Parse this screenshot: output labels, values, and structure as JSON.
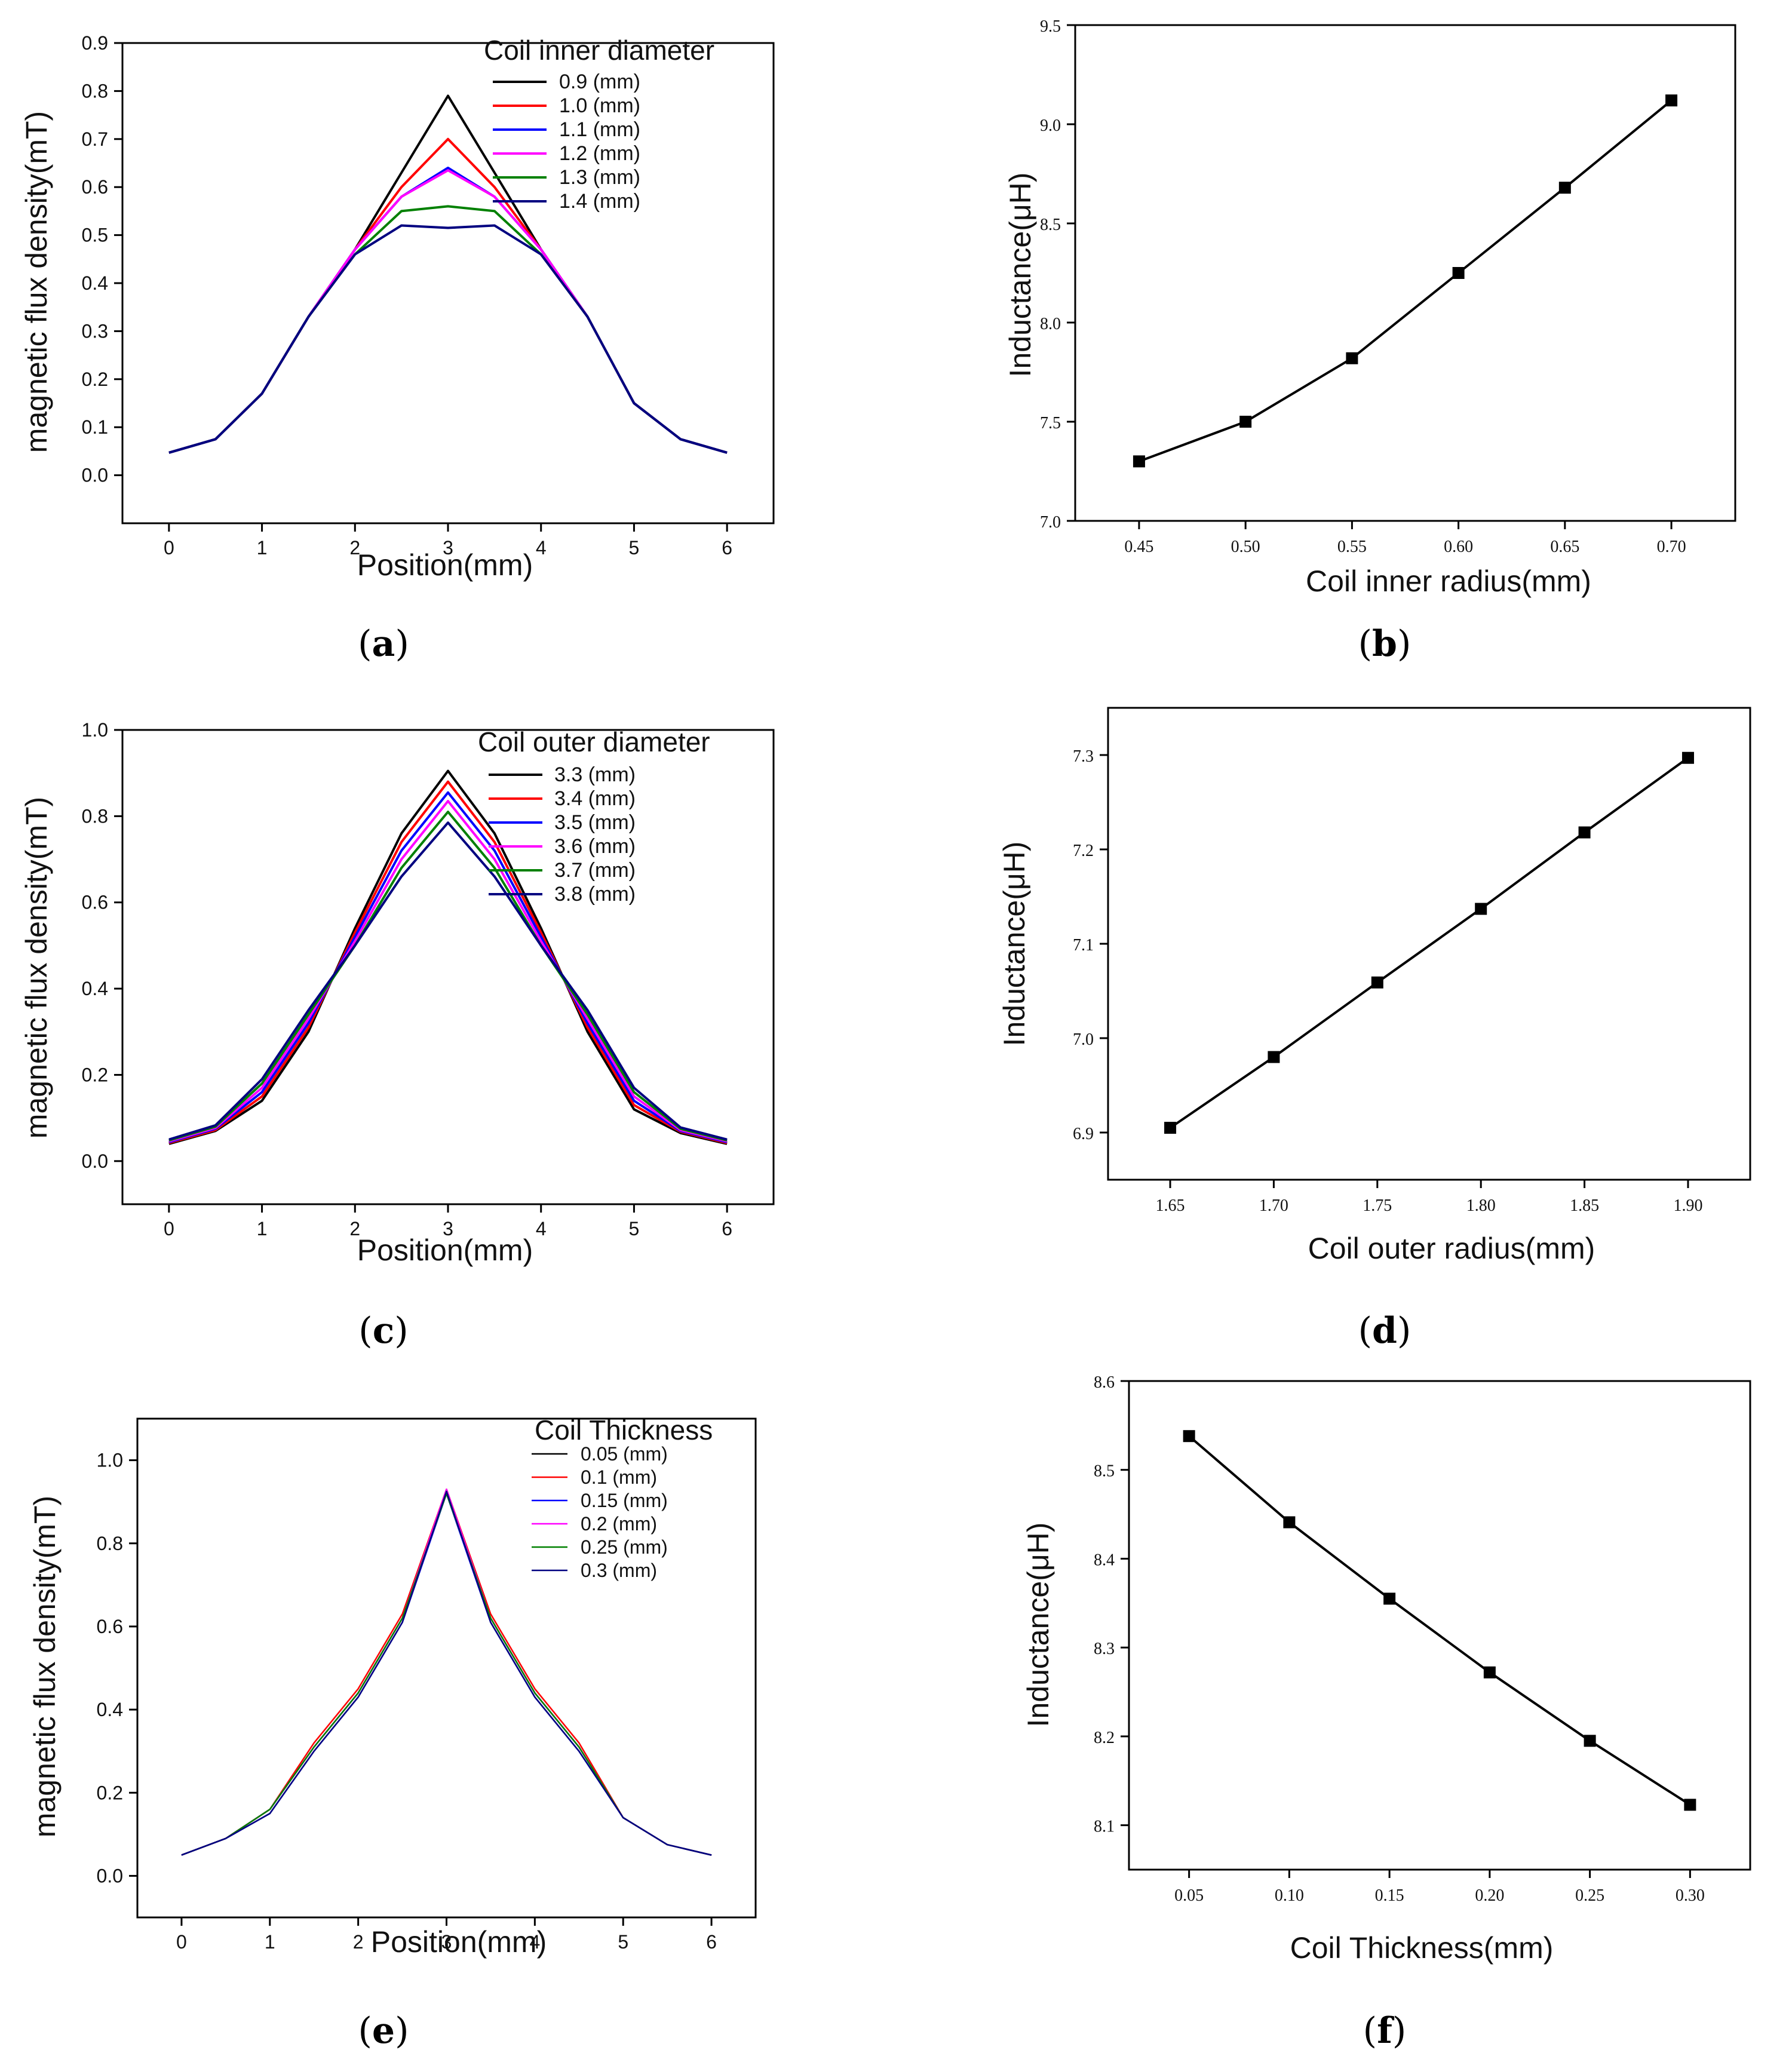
{
  "chart_data": [
    {
      "id": "a",
      "type": "line",
      "caption": "a",
      "xlabel": "Position(mm)",
      "ylabel": "magnetic flux density(mT)",
      "xlim": [
        -0.5,
        6.5
      ],
      "ylim": [
        -0.1,
        0.9
      ],
      "xticks": [
        "0",
        "1",
        "2",
        "3",
        "4",
        "5",
        "6"
      ],
      "yticks": [
        "0.0",
        "0.1",
        "0.2",
        "0.3",
        "0.4",
        "0.5",
        "0.6",
        "0.7",
        "0.8",
        "0.9"
      ],
      "legend": {
        "title": "Coil inner diameter",
        "position": "top-right"
      },
      "series": [
        {
          "name": "0.9 (mm)",
          "color": "#000000",
          "x": [
            0,
            0.5,
            1,
            1.5,
            2,
            2.5,
            3,
            3.5,
            4,
            4.5,
            5,
            5.5,
            6
          ],
          "y": [
            0.047,
            0.075,
            0.17,
            0.33,
            0.47,
            0.63,
            0.79,
            0.63,
            0.47,
            0.33,
            0.15,
            0.075,
            0.047
          ]
        },
        {
          "name": "1.0 (mm)",
          "color": "#ff0000",
          "x": [
            0,
            0.5,
            1,
            1.5,
            2,
            2.5,
            3,
            3.5,
            4,
            4.5,
            5,
            5.5,
            6
          ],
          "y": [
            0.047,
            0.075,
            0.17,
            0.33,
            0.47,
            0.6,
            0.7,
            0.6,
            0.47,
            0.33,
            0.15,
            0.075,
            0.047
          ]
        },
        {
          "name": "1.1 (mm)",
          "color": "#0000ff",
          "x": [
            0,
            0.5,
            1,
            1.5,
            2,
            2.5,
            3,
            3.5,
            4,
            4.5,
            5,
            5.5,
            6
          ],
          "y": [
            0.047,
            0.075,
            0.17,
            0.33,
            0.47,
            0.58,
            0.64,
            0.58,
            0.47,
            0.33,
            0.15,
            0.075,
            0.047
          ]
        },
        {
          "name": "1.2 (mm)",
          "color": "#ff00ff",
          "x": [
            0,
            0.5,
            1,
            1.5,
            2,
            2.5,
            3,
            3.5,
            4,
            4.5,
            5,
            5.5,
            6
          ],
          "y": [
            0.047,
            0.075,
            0.17,
            0.33,
            0.47,
            0.58,
            0.635,
            0.58,
            0.47,
            0.33,
            0.15,
            0.075,
            0.047
          ]
        },
        {
          "name": "1.3 (mm)",
          "color": "#008000",
          "x": [
            0,
            0.5,
            1,
            1.5,
            2,
            2.5,
            3,
            3.5,
            4,
            4.5,
            5,
            5.5,
            6
          ],
          "y": [
            0.047,
            0.075,
            0.17,
            0.33,
            0.46,
            0.55,
            0.56,
            0.55,
            0.46,
            0.33,
            0.15,
            0.075,
            0.047
          ]
        },
        {
          "name": "1.4 (mm)",
          "color": "#000080",
          "x": [
            0,
            0.5,
            1,
            1.5,
            2,
            2.5,
            3,
            3.5,
            4,
            4.5,
            5,
            5.5,
            6
          ],
          "y": [
            0.047,
            0.075,
            0.17,
            0.33,
            0.46,
            0.52,
            0.515,
            0.52,
            0.46,
            0.33,
            0.15,
            0.075,
            0.047
          ]
        }
      ]
    },
    {
      "id": "b",
      "type": "line",
      "caption": "b",
      "xlabel": "Coil inner radius(mm)",
      "ylabel": "Inductance(μH)",
      "xlim": [
        0.42,
        0.73
      ],
      "ylim": [
        7.0,
        9.5
      ],
      "xticks": [
        "0.45",
        "0.50",
        "0.55",
        "0.60",
        "0.65",
        "0.70"
      ],
      "yticks": [
        "7.0",
        "7.5",
        "8.0",
        "8.5",
        "9.0",
        "9.5"
      ],
      "series": [
        {
          "name": "Inductance",
          "color": "#000000",
          "x": [
            0.45,
            0.5,
            0.55,
            0.6,
            0.65,
            0.7
          ],
          "y": [
            7.3,
            7.5,
            7.82,
            8.25,
            8.68,
            9.12
          ]
        }
      ]
    },
    {
      "id": "c",
      "type": "line",
      "caption": "c",
      "xlabel": "Position(mm)",
      "ylabel": "magnetic flux density(mT)",
      "xlim": [
        -0.5,
        6.5
      ],
      "ylim": [
        -0.1,
        1.0
      ],
      "xticks": [
        "0",
        "1",
        "2",
        "3",
        "4",
        "5",
        "6"
      ],
      "yticks": [
        "0.0",
        "0.2",
        "0.4",
        "0.6",
        "0.8",
        "1.0"
      ],
      "legend": {
        "title": "Coil outer diameter",
        "position": "top-right"
      },
      "series": [
        {
          "name": "3.3 (mm)",
          "color": "#000000",
          "x": [
            0,
            0.5,
            1,
            1.5,
            2,
            2.5,
            3,
            3.5,
            4,
            4.5,
            5,
            5.5,
            6
          ],
          "y": [
            0.04,
            0.07,
            0.14,
            0.3,
            0.54,
            0.76,
            0.905,
            0.76,
            0.54,
            0.3,
            0.12,
            0.065,
            0.04
          ]
        },
        {
          "name": "3.4 (mm)",
          "color": "#ff0000",
          "x": [
            0,
            0.5,
            1,
            1.5,
            2,
            2.5,
            3,
            3.5,
            4,
            4.5,
            5,
            5.5,
            6
          ],
          "y": [
            0.042,
            0.072,
            0.15,
            0.31,
            0.53,
            0.74,
            0.88,
            0.74,
            0.53,
            0.31,
            0.13,
            0.068,
            0.042
          ]
        },
        {
          "name": "3.5 (mm)",
          "color": "#0000ff",
          "x": [
            0,
            0.5,
            1,
            1.5,
            2,
            2.5,
            3,
            3.5,
            4,
            4.5,
            5,
            5.5,
            6
          ],
          "y": [
            0.044,
            0.075,
            0.16,
            0.32,
            0.52,
            0.72,
            0.855,
            0.72,
            0.52,
            0.32,
            0.14,
            0.07,
            0.044
          ]
        },
        {
          "name": "3.6 (mm)",
          "color": "#ff00ff",
          "x": [
            0,
            0.5,
            1,
            1.5,
            2,
            2.5,
            3,
            3.5,
            4,
            4.5,
            5,
            5.5,
            6
          ],
          "y": [
            0.046,
            0.077,
            0.17,
            0.33,
            0.51,
            0.7,
            0.835,
            0.7,
            0.51,
            0.33,
            0.15,
            0.072,
            0.046
          ]
        },
        {
          "name": "3.7 (mm)",
          "color": "#008000",
          "x": [
            0,
            0.5,
            1,
            1.5,
            2,
            2.5,
            3,
            3.5,
            4,
            4.5,
            5,
            5.5,
            6
          ],
          "y": [
            0.048,
            0.08,
            0.18,
            0.34,
            0.5,
            0.68,
            0.81,
            0.68,
            0.5,
            0.34,
            0.16,
            0.075,
            0.048
          ]
        },
        {
          "name": "3.8 (mm)",
          "color": "#000080",
          "x": [
            0,
            0.5,
            1,
            1.5,
            2,
            2.5,
            3,
            3.5,
            4,
            4.5,
            5,
            5.5,
            6
          ],
          "y": [
            0.05,
            0.083,
            0.19,
            0.35,
            0.5,
            0.66,
            0.785,
            0.66,
            0.5,
            0.35,
            0.17,
            0.078,
            0.05
          ]
        }
      ]
    },
    {
      "id": "d",
      "type": "line",
      "caption": "d",
      "xlabel": "Coil outer radius(mm)",
      "ylabel": "Inductance(μH)",
      "xlim": [
        1.62,
        1.93
      ],
      "ylim": [
        6.85,
        7.35
      ],
      "xticks": [
        "1.65",
        "1.70",
        "1.75",
        "1.80",
        "1.85",
        "1.90"
      ],
      "yticks": [
        "6.9",
        "7.0",
        "7.1",
        "7.2",
        "7.3"
      ],
      "series": [
        {
          "name": "Inductance",
          "color": "#000000",
          "x": [
            1.65,
            1.7,
            1.75,
            1.8,
            1.85,
            1.9
          ],
          "y": [
            6.905,
            6.98,
            7.059,
            7.137,
            7.218,
            7.297
          ]
        }
      ]
    },
    {
      "id": "e",
      "type": "line",
      "caption": "e",
      "xlabel": "Position(mm)",
      "ylabel": "magnetic flux density(mT)",
      "xlim": [
        -0.5,
        6.5
      ],
      "ylim": [
        -0.1,
        1.1
      ],
      "xticks": [
        "0",
        "1",
        "2",
        "3",
        "4",
        "5",
        "6"
      ],
      "yticks": [
        "0.0",
        "0.2",
        "0.4",
        "0.6",
        "0.8",
        "1.0"
      ],
      "legend": {
        "title": "Coil Thickness",
        "position": "top-right"
      },
      "series": [
        {
          "name": "0.05 (mm)",
          "color": "#000000",
          "x": [
            0,
            0.5,
            1,
            1.5,
            2,
            2.5,
            3,
            3.5,
            4,
            4.5,
            5,
            5.5,
            6
          ],
          "y": [
            0.05,
            0.09,
            0.16,
            0.31,
            0.44,
            0.62,
            0.93,
            0.62,
            0.44,
            0.31,
            0.14,
            0.075,
            0.05
          ]
        },
        {
          "name": "0.1 (mm)",
          "color": "#ff0000",
          "x": [
            0,
            0.5,
            1,
            1.5,
            2,
            2.5,
            3,
            3.5,
            4,
            4.5,
            5,
            5.5,
            6
          ],
          "y": [
            0.05,
            0.09,
            0.16,
            0.32,
            0.45,
            0.63,
            0.93,
            0.63,
            0.45,
            0.32,
            0.14,
            0.075,
            0.05
          ]
        },
        {
          "name": "0.15 (mm)",
          "color": "#0000ff",
          "x": [
            0,
            0.5,
            1,
            1.5,
            2,
            2.5,
            3,
            3.5,
            4,
            4.5,
            5,
            5.5,
            6
          ],
          "y": [
            0.05,
            0.09,
            0.15,
            0.3,
            0.43,
            0.61,
            0.92,
            0.61,
            0.43,
            0.3,
            0.14,
            0.075,
            0.05
          ]
        },
        {
          "name": "0.2 (mm)",
          "color": "#ff00ff",
          "x": [
            0,
            0.5,
            1,
            1.5,
            2,
            2.5,
            3,
            3.5,
            4,
            4.5,
            5,
            5.5,
            6
          ],
          "y": [
            0.05,
            0.09,
            0.16,
            0.31,
            0.44,
            0.62,
            0.93,
            0.62,
            0.44,
            0.31,
            0.14,
            0.075,
            0.05
          ]
        },
        {
          "name": "0.25 (mm)",
          "color": "#008000",
          "x": [
            0,
            0.5,
            1,
            1.5,
            2,
            2.5,
            3,
            3.5,
            4,
            4.5,
            5,
            5.5,
            6
          ],
          "y": [
            0.05,
            0.09,
            0.16,
            0.31,
            0.44,
            0.62,
            0.92,
            0.62,
            0.44,
            0.31,
            0.14,
            0.075,
            0.05
          ]
        },
        {
          "name": "0.3 (mm)",
          "color": "#000080",
          "x": [
            0,
            0.5,
            1,
            1.5,
            2,
            2.5,
            3,
            3.5,
            4,
            4.5,
            5,
            5.5,
            6
          ],
          "y": [
            0.05,
            0.09,
            0.15,
            0.3,
            0.43,
            0.61,
            0.925,
            0.61,
            0.43,
            0.3,
            0.14,
            0.075,
            0.05
          ]
        }
      ]
    },
    {
      "id": "f",
      "type": "line",
      "caption": "f",
      "xlabel": "Coil Thickness(mm)",
      "ylabel": "Inductance(μH)",
      "xlim": [
        0.02,
        0.33
      ],
      "ylim": [
        8.05,
        8.6
      ],
      "xticks": [
        "0.05",
        "0.10",
        "0.15",
        "0.20",
        "0.25",
        "0.30"
      ],
      "yticks": [
        "8.1",
        "8.2",
        "8.3",
        "8.4",
        "8.5",
        "8.6"
      ],
      "series": [
        {
          "name": "Inductance",
          "color": "#000000",
          "x": [
            0.05,
            0.1,
            0.15,
            0.2,
            0.25,
            0.3
          ],
          "y": [
            8.538,
            8.441,
            8.355,
            8.272,
            8.195,
            8.123
          ]
        }
      ]
    }
  ]
}
